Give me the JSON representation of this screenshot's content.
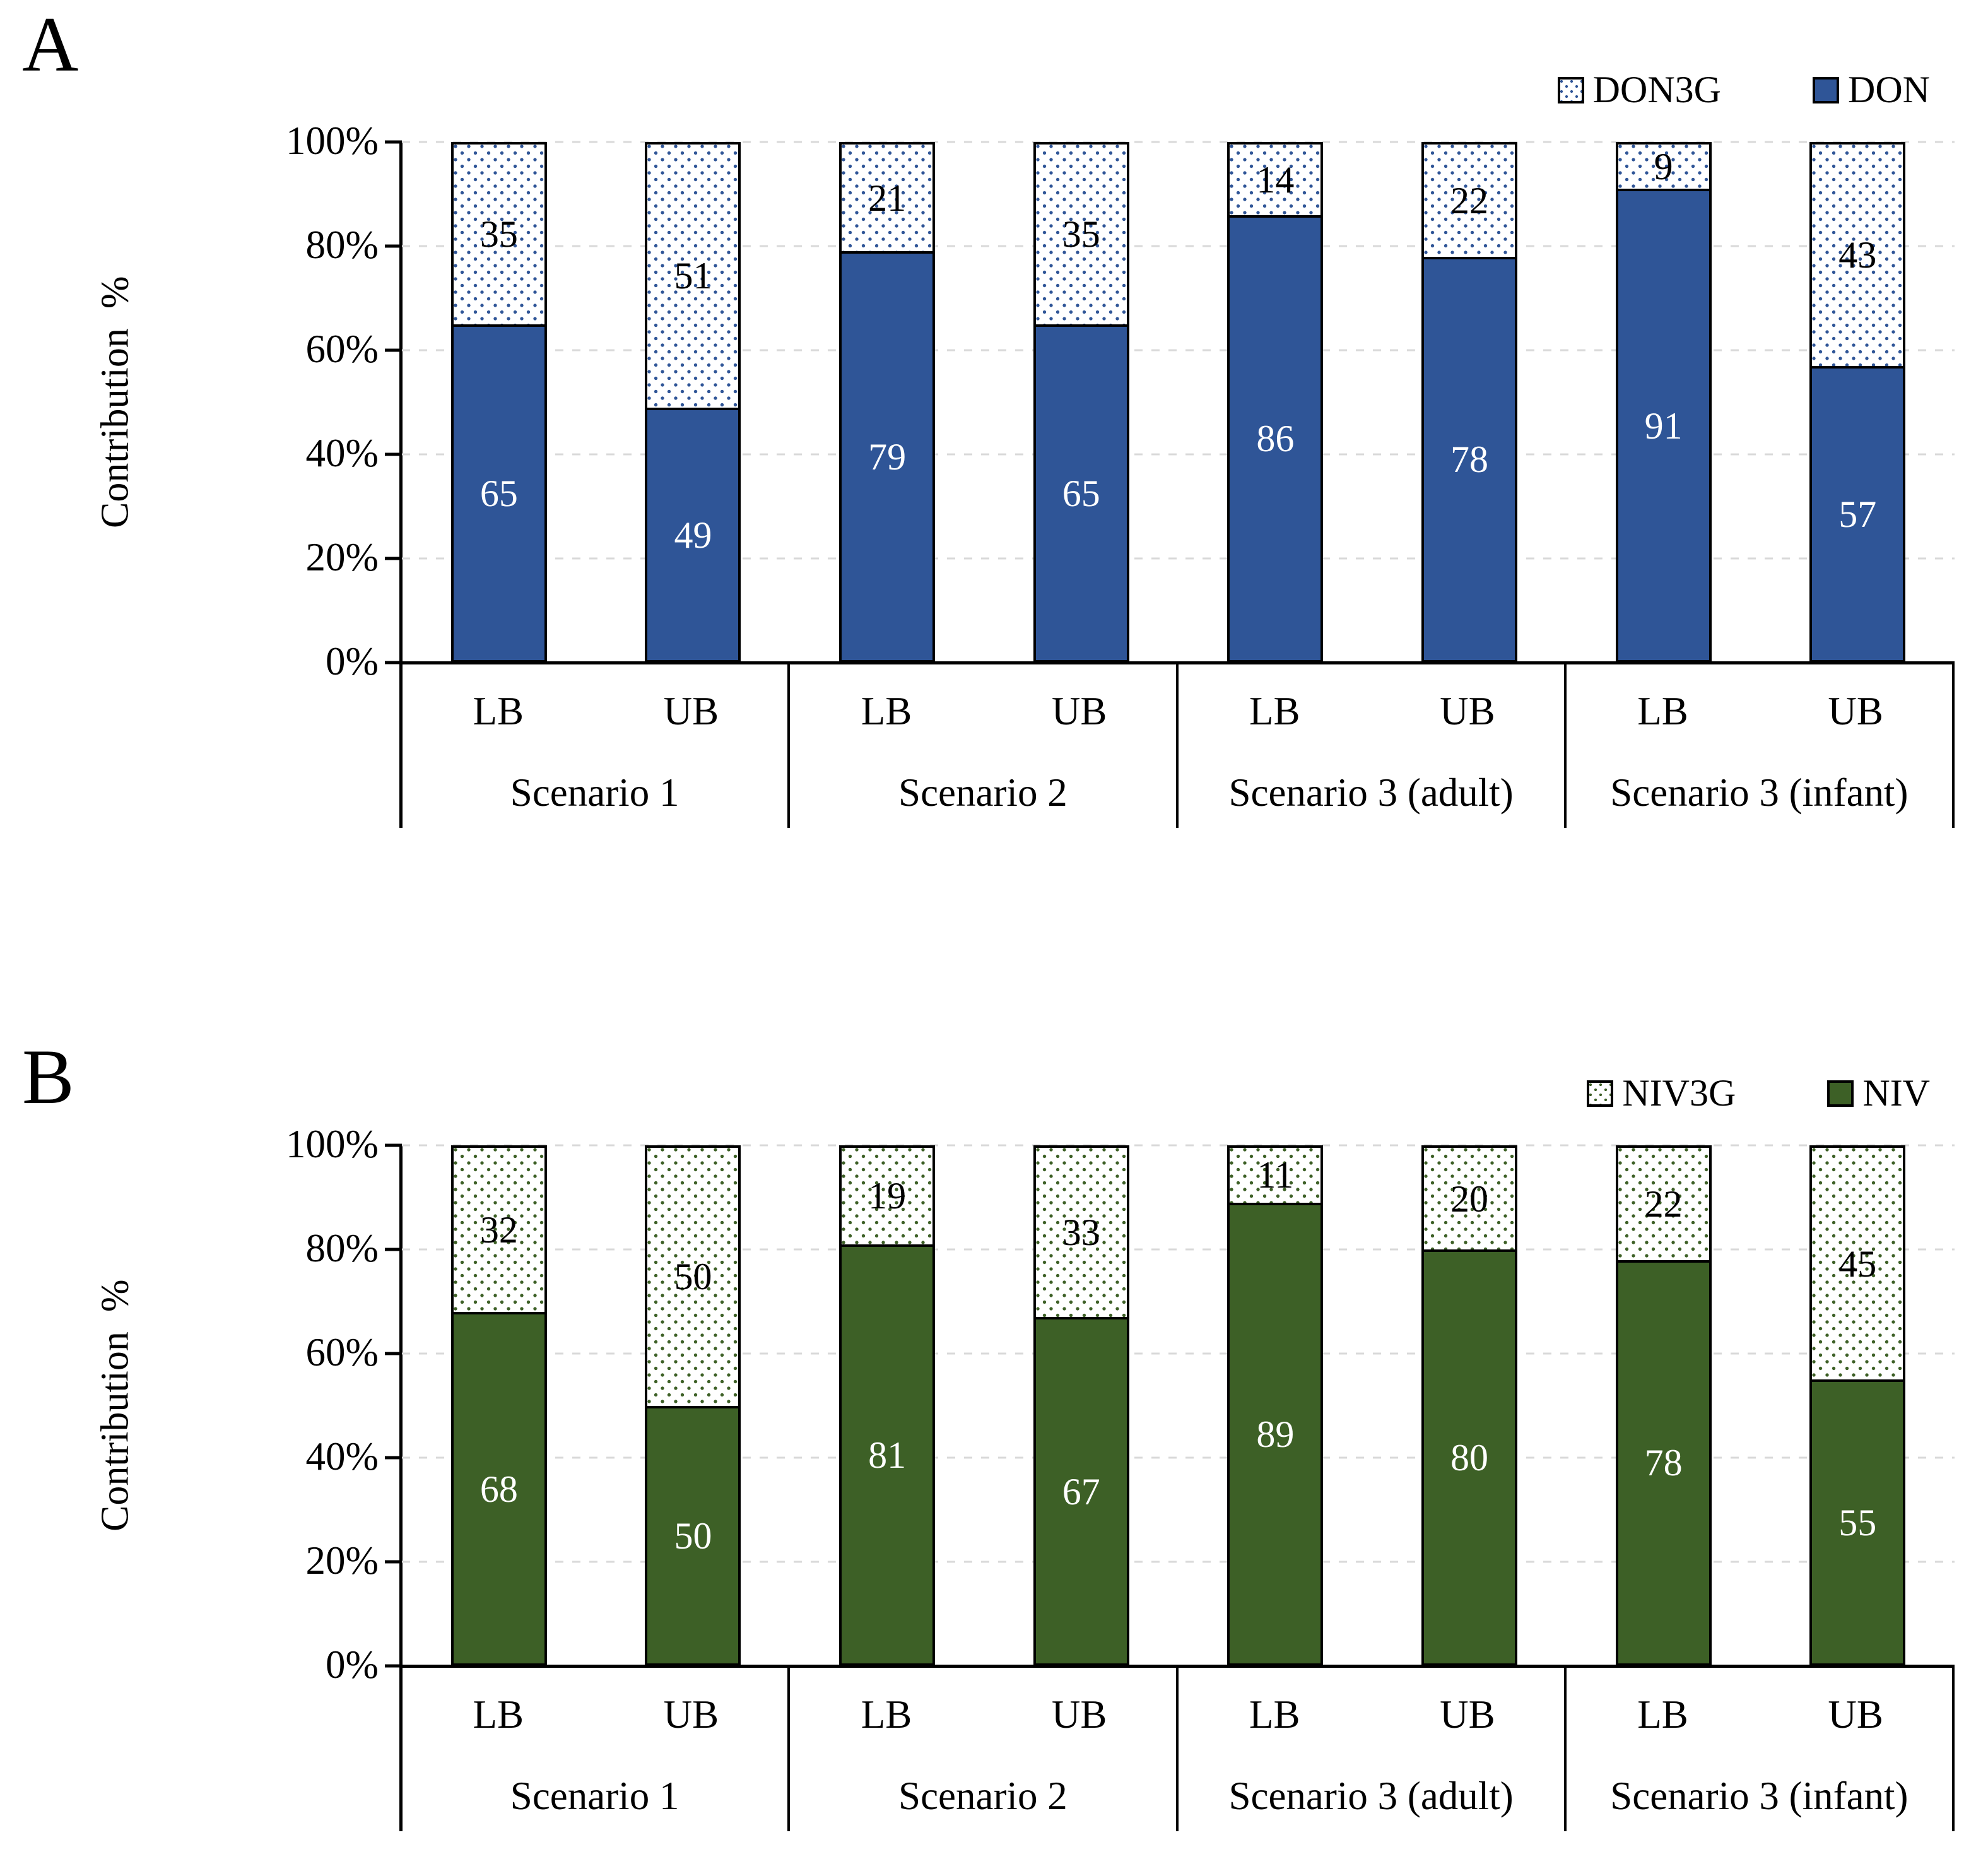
{
  "figure": {
    "description": "Two-panel 100% stacked bar chart of contribution percentages"
  },
  "chart_data": [
    {
      "type": "bar",
      "stacked": true,
      "units": "percent",
      "panel_label": "A",
      "ylabel": "Contribution  %",
      "ylim": [
        0,
        100
      ],
      "yticks": [
        "100%",
        "80%",
        "60%",
        "40%",
        "20%",
        "0%"
      ],
      "grid": "dashed-horizontal-every-20",
      "legend_position": "top-right",
      "legend": [
        {
          "label": "DON3G",
          "style": "dotted"
        },
        {
          "label": "DON",
          "style": "solid"
        }
      ],
      "group_labels": [
        "Scenario 1",
        "Scenario 2",
        "Scenario 3 (adult)",
        "Scenario 3 (infant)"
      ],
      "bar_labels": [
        "LB",
        "UB"
      ],
      "series": [
        {
          "name": "DON",
          "style": "solid",
          "color": "#2F5597",
          "values": [
            65,
            49,
            79,
            65,
            86,
            78,
            91,
            57
          ]
        },
        {
          "name": "DON3G",
          "style": "dotted",
          "color": "#2F5597",
          "values": [
            35,
            51,
            21,
            35,
            14,
            22,
            9,
            43
          ]
        }
      ]
    },
    {
      "type": "bar",
      "stacked": true,
      "units": "percent",
      "panel_label": "B",
      "ylabel": "Contribution  %",
      "ylim": [
        0,
        100
      ],
      "yticks": [
        "100%",
        "80%",
        "60%",
        "40%",
        "20%",
        "0%"
      ],
      "grid": "dashed-horizontal-every-20",
      "legend_position": "top-right",
      "legend": [
        {
          "label": "NIV3G",
          "style": "dotted"
        },
        {
          "label": "NIV",
          "style": "solid"
        }
      ],
      "group_labels": [
        "Scenario 1",
        "Scenario 2",
        "Scenario 3 (adult)",
        "Scenario 3 (infant)"
      ],
      "bar_labels": [
        "LB",
        "UB"
      ],
      "series": [
        {
          "name": "NIV",
          "style": "solid",
          "color": "#3D6026",
          "values": [
            68,
            50,
            81,
            67,
            89,
            80,
            78,
            55
          ]
        },
        {
          "name": "NIV3G",
          "style": "dotted",
          "color": "#3D6026",
          "values": [
            32,
            50,
            19,
            33,
            11,
            20,
            22,
            45
          ]
        }
      ]
    }
  ]
}
